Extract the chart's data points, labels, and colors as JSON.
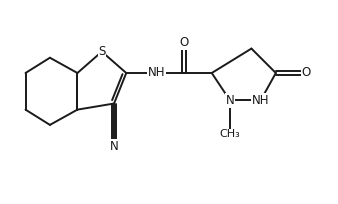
{
  "bg_color": "#ffffff",
  "line_color": "#1a1a1a",
  "line_width": 1.4,
  "font_size": 8.5,
  "figsize": [
    3.38,
    2.04
  ],
  "dpi": 100,
  "xlim": [
    -0.5,
    9.5
  ],
  "ylim": [
    -1.0,
    5.5
  ]
}
